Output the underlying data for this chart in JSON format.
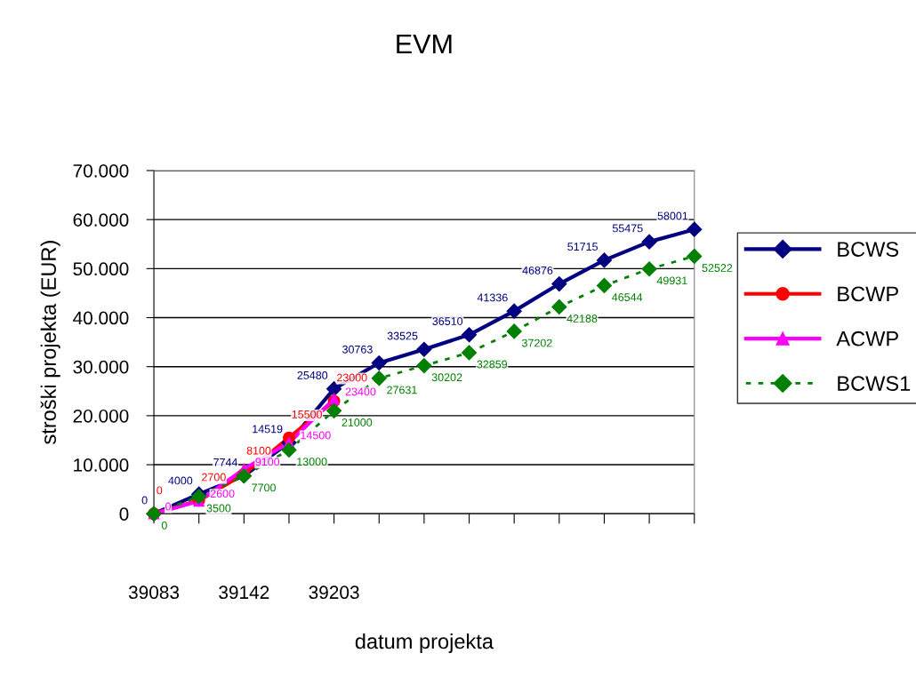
{
  "chart_data": {
    "type": "line",
    "title": "EVM",
    "xlabel": "datum projekta",
    "ylabel": "stroški projekta (EUR)",
    "categories": [
      "39083",
      null,
      "39142",
      null,
      "39203",
      null,
      null,
      null,
      null,
      null,
      null,
      null,
      null
    ],
    "series": [
      {
        "name": "BCWS",
        "color": "#000080",
        "marker": "diamond",
        "line_style": "solid",
        "values": [
          0,
          4000,
          7744,
          14519,
          25480,
          30763,
          33525,
          36510,
          41336,
          46876,
          51715,
          55475,
          58001
        ]
      },
      {
        "name": "BCWP",
        "color": "#ff0000",
        "marker": "circle",
        "line_style": "solid",
        "values": [
          0,
          2700,
          8100,
          15500,
          23000,
          null,
          null,
          null,
          null,
          null,
          null,
          null,
          null
        ]
      },
      {
        "name": "ACWP",
        "color": "#ff00ff",
        "marker": "triangle",
        "line_style": "solid",
        "values": [
          0,
          2600,
          9100,
          14500,
          23400,
          null,
          null,
          null,
          null,
          null,
          null,
          null,
          null
        ]
      },
      {
        "name": "BCWS1",
        "color": "#008000",
        "marker": "diamond",
        "line_style": "dashed",
        "values": [
          0,
          3500,
          7700,
          13000,
          21000,
          27631,
          30202,
          32859,
          37202,
          42188,
          46544,
          49931,
          52522
        ]
      }
    ],
    "ylim": [
      0,
      70000
    ],
    "yticks": [
      0,
      {
        "value": 10000,
        "label": "10.000"
      },
      {
        "value": 20000,
        "label": "20.000"
      },
      {
        "value": 30000,
        "label": "30.000"
      },
      {
        "value": 40000,
        "label": "40.000"
      },
      {
        "value": 50000,
        "label": "50.000"
      },
      {
        "value": 60000,
        "label": "60.000"
      },
      {
        "value": 70000,
        "label": "70.000"
      }
    ],
    "grid": "y",
    "legend": "right",
    "data_labels": true
  }
}
